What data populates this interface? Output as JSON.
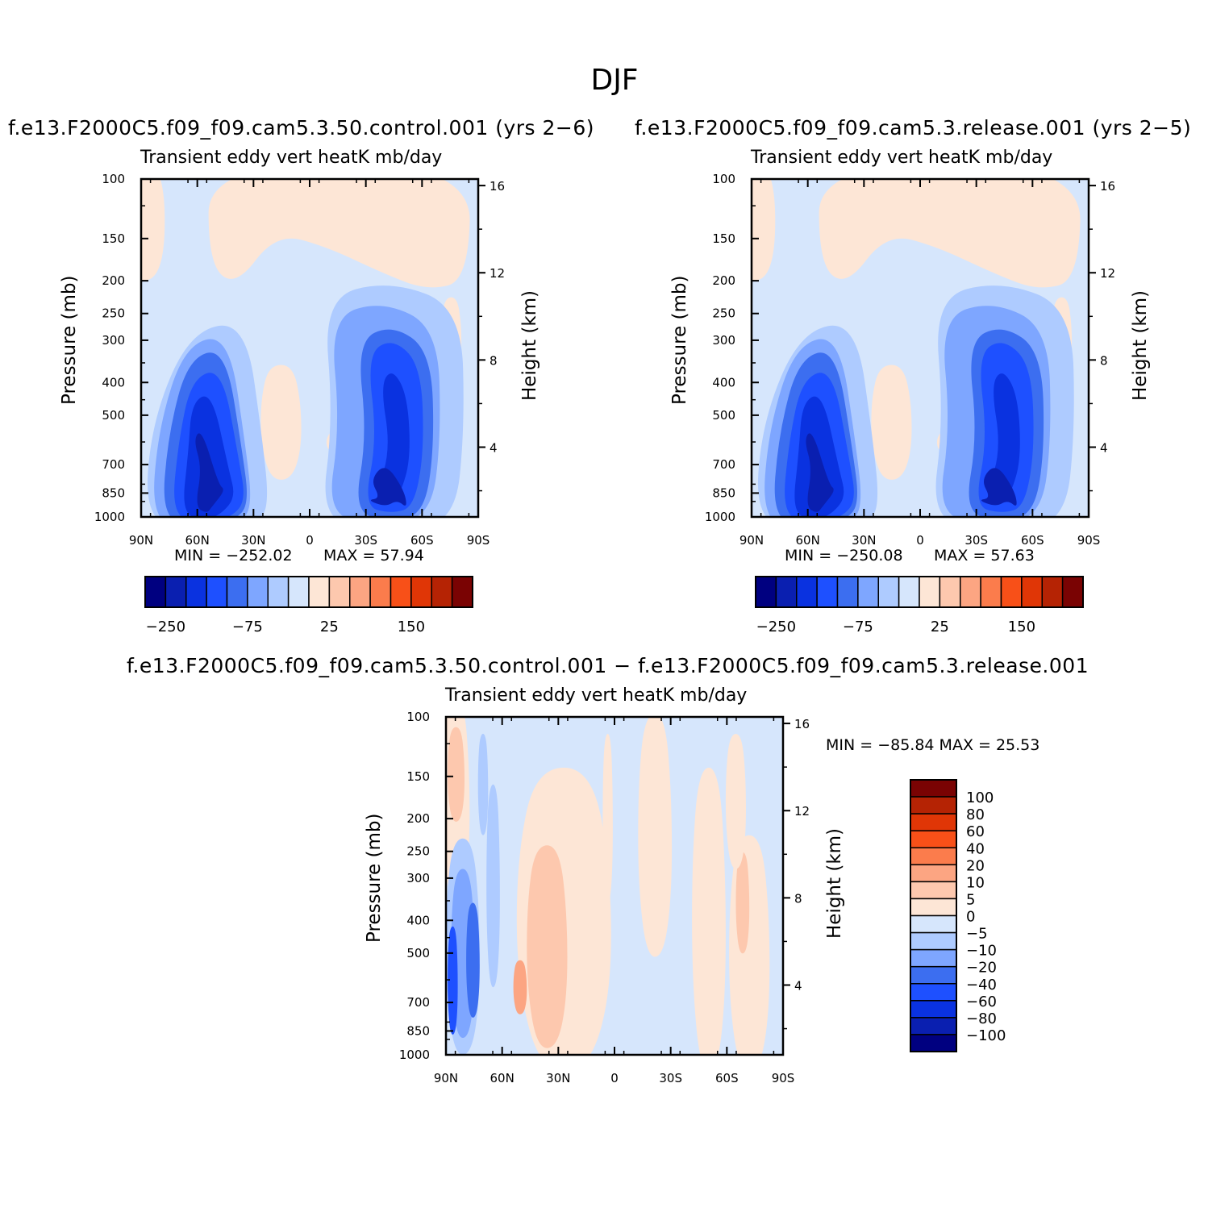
{
  "suptitle": "DJF",
  "colors": {
    "levels13": [
      "#000080",
      "#0a1fb0",
      "#0a32e0",
      "#1e50ff",
      "#3c6ef0",
      "#7ea6ff",
      "#aecbff",
      "#d6e6fc",
      "#fde6d6",
      "#fdc8ae",
      "#fca582",
      "#fb7c4c",
      "#f85018",
      "#e03606",
      "#b52304",
      "#7a0303"
    ],
    "levels_diff": [
      "#7a0303",
      "#b52304",
      "#e03606",
      "#f85018",
      "#fb7c4c",
      "#fca582",
      "#fdc8ae",
      "#fde6d6",
      "#d6e6fc",
      "#aecbff",
      "#7ea6ff",
      "#3c6ef0",
      "#1e50ff",
      "#0a32e0",
      "#0a1fb0",
      "#000080"
    ]
  },
  "panels": {
    "control": {
      "run_title": "f.e13.F2000C5.f09_f09.cam5.3.50.control.001 (yrs 2−6)",
      "var_title": "Transient eddy vert heatK mb/day",
      "ylabel": "Pressure (mb)",
      "y2label": "Height (km)",
      "min_label": "MIN = −252.02",
      "max_label": "MAX = 57.94",
      "cb_labels": [
        "−250",
        "−75",
        "25",
        "150"
      ]
    },
    "release": {
      "run_title": "f.e13.F2000C5.f09_f09.cam5.3.release.001 (yrs 2−5)",
      "var_title": "Transient eddy vert heatK mb/day",
      "ylabel": "Pressure (mb)",
      "y2label": "Height (km)",
      "min_label": "MIN = −250.08",
      "max_label": "MAX = 57.63",
      "cb_labels": [
        "−250",
        "−75",
        "25",
        "150"
      ]
    },
    "diff": {
      "run_title": "f.e13.F2000C5.f09_f09.cam5.3.50.control.001 − f.e13.F2000C5.f09_f09.cam5.3.release.001",
      "var_title": "Transient eddy vert heatK mb/day",
      "ylabel": "Pressure (mb)",
      "y2label": "Height (km)",
      "minmax_label": "MIN = −85.84 MAX = 25.53",
      "cb_labels": [
        "100",
        "80",
        "60",
        "40",
        "20",
        "10",
        "5",
        "0",
        "−5",
        "−10",
        "−20",
        "−40",
        "−60",
        "−80",
        "−100"
      ]
    }
  },
  "chart_data": [
    {
      "type": "heatmap",
      "title": "Transient eddy vert heatK mb/day",
      "ylabel": "Pressure (mb)",
      "y2label": "Height (km)",
      "x_ticks": [
        "90N",
        "60N",
        "30N",
        "0",
        "30S",
        "60S",
        "90S"
      ],
      "y_ticks": [
        100,
        150,
        200,
        250,
        300,
        400,
        500,
        700,
        850,
        1000
      ],
      "y2_ticks": [
        4,
        8,
        12,
        16
      ],
      "y_scale": "log",
      "ylim": [
        1000,
        100
      ],
      "min": -252.02,
      "max": 57.94,
      "features": [
        {
          "lat": 45,
          "p": 700,
          "value": -250
        },
        {
          "lat": -52,
          "p": 800,
          "value": -150
        },
        {
          "lat": 15,
          "p": 550,
          "value": 5
        },
        {
          "lat": -65,
          "p": 130,
          "value": 5
        }
      ]
    },
    {
      "type": "heatmap",
      "title": "Transient eddy vert heatK mb/day",
      "ylabel": "Pressure (mb)",
      "y2label": "Height (km)",
      "x_ticks": [
        "90N",
        "60N",
        "30N",
        "0",
        "30S",
        "60S",
        "90S"
      ],
      "y_ticks": [
        100,
        150,
        200,
        250,
        300,
        400,
        500,
        700,
        850,
        1000
      ],
      "y2_ticks": [
        4,
        8,
        12,
        16
      ],
      "y_scale": "log",
      "ylim": [
        1000,
        100
      ],
      "min": -250.08,
      "max": 57.63,
      "features": [
        {
          "lat": 45,
          "p": 700,
          "value": -250
        },
        {
          "lat": -52,
          "p": 800,
          "value": -150
        },
        {
          "lat": 15,
          "p": 550,
          "value": 5
        },
        {
          "lat": -65,
          "p": 130,
          "value": 5
        }
      ]
    },
    {
      "type": "heatmap",
      "title": "Transient eddy vert heatK mb/day",
      "ylabel": "Pressure (mb)",
      "y2label": "Height (km)",
      "x_ticks": [
        "90N",
        "60N",
        "30N",
        "0",
        "30S",
        "60S",
        "90S"
      ],
      "y_ticks": [
        100,
        150,
        200,
        250,
        300,
        400,
        500,
        700,
        850,
        1000
      ],
      "y2_ticks": [
        4,
        8,
        12,
        16
      ],
      "y_scale": "log",
      "ylim": [
        1000,
        100
      ],
      "min": -85.84,
      "max": 25.53,
      "levels": [
        -100,
        -80,
        -60,
        -40,
        -20,
        -10,
        -5,
        0,
        5,
        10,
        20,
        40,
        60,
        80,
        100
      ],
      "features": [
        {
          "lat": 75,
          "p": 450,
          "value": -40
        },
        {
          "lat": 40,
          "p": 550,
          "value": 20
        },
        {
          "lat": 35,
          "p": 300,
          "value": 10
        },
        {
          "lat": -75,
          "p": 450,
          "value": 10
        }
      ]
    }
  ]
}
